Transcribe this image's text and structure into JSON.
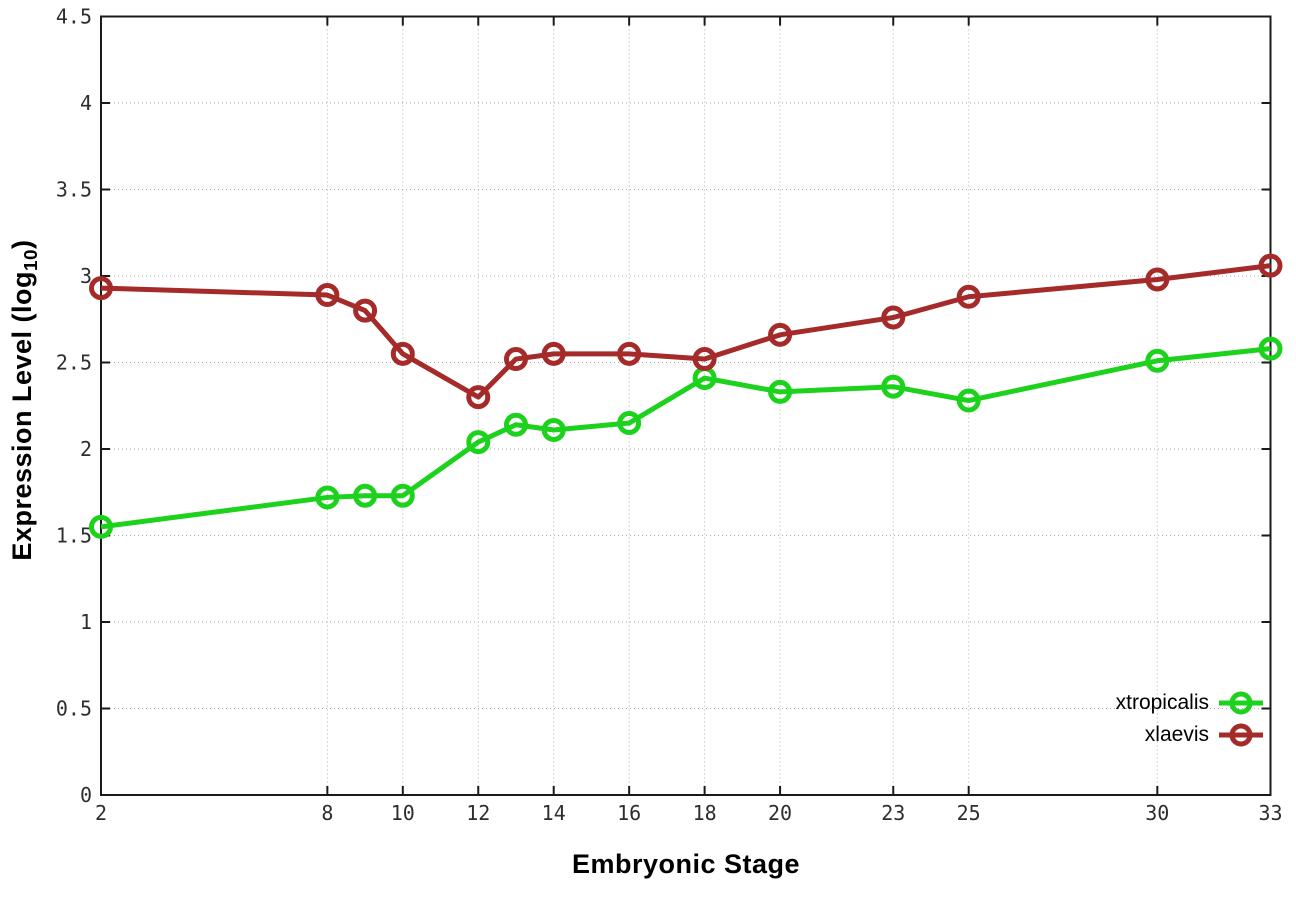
{
  "chart_data": {
    "type": "line",
    "title": "",
    "xlabel": "Embryonic Stage",
    "ylabel": "Expression Level (log10)",
    "ylabel_parts": {
      "main": "Expression Level (log",
      "sub": "10",
      "end": ")"
    },
    "x": [
      2,
      8,
      9,
      10,
      12,
      13,
      14,
      16,
      18,
      20,
      23,
      25,
      30,
      33
    ],
    "series": [
      {
        "name": "xtropicalis",
        "color": "#1dd21d",
        "values": [
          1.55,
          1.72,
          1.73,
          1.73,
          2.04,
          2.14,
          2.11,
          2.15,
          2.41,
          2.33,
          2.36,
          2.28,
          2.51,
          2.58
        ]
      },
      {
        "name": "xlaevis",
        "color": "#a52a2a",
        "values": [
          2.93,
          2.89,
          2.8,
          2.55,
          2.3,
          2.52,
          2.55,
          2.55,
          2.52,
          2.66,
          2.76,
          2.88,
          2.98,
          3.06
        ]
      }
    ],
    "xlim": [
      2,
      33
    ],
    "ylim": [
      0,
      4.5
    ],
    "xticks": [
      2,
      8,
      10,
      12,
      14,
      16,
      18,
      20,
      23,
      25,
      30,
      33
    ],
    "xtick_labels": [
      "2",
      "8",
      "10",
      "12",
      "14",
      "16",
      "18",
      "20",
      "23",
      "25",
      "30",
      "33"
    ],
    "yticks": [
      0,
      0.5,
      1,
      1.5,
      2,
      2.5,
      3,
      3.5,
      4,
      4.5
    ],
    "ytick_labels": [
      "0",
      "0.5",
      "1",
      "1.5",
      "2",
      "2.5",
      "3",
      "3.5",
      "4",
      "4.5"
    ],
    "grid": true,
    "legend_position": "bottom-right",
    "axis_color": "#1a1a1a",
    "grid_color": "#a9a9a9",
    "tick_label_color": "#2e2e2e"
  }
}
